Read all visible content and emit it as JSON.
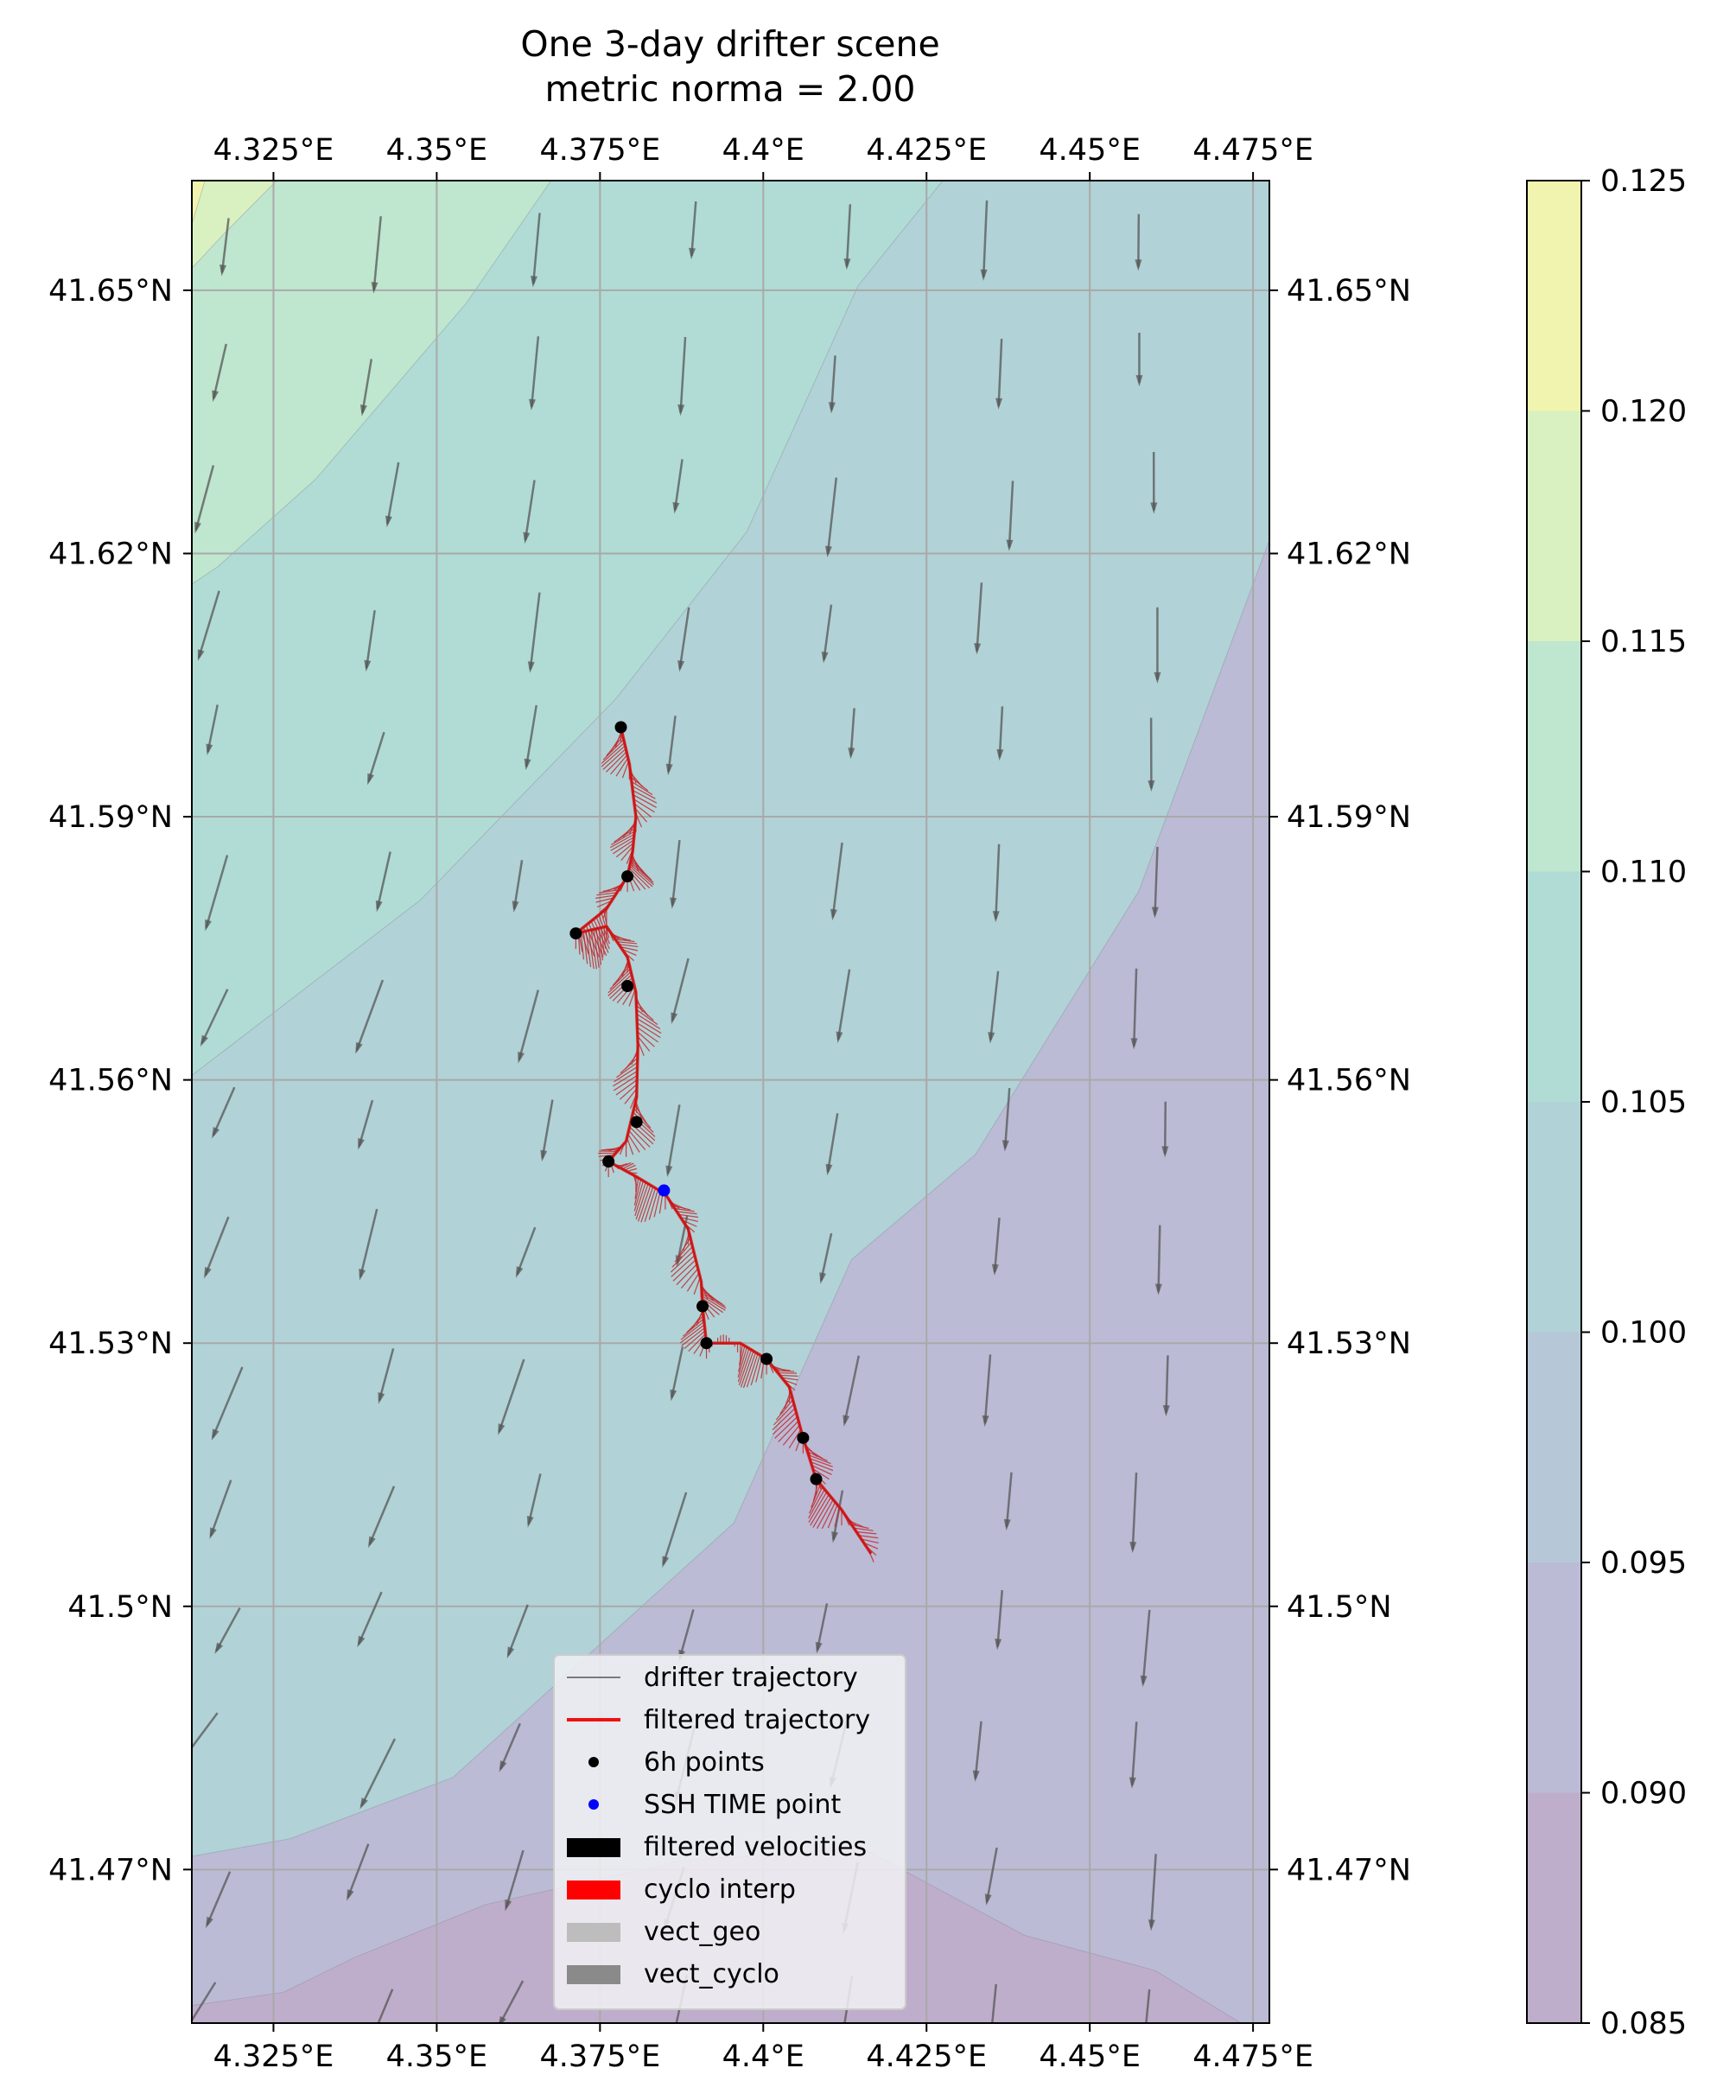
{
  "chart_data": {
    "type": "contour_map",
    "title": "One 3-day drifter scene",
    "subtitle": "metric norma = 2.00",
    "xlim": [
      4.3125,
      4.4775
    ],
    "ylim": [
      41.4525,
      41.6625
    ],
    "x_ticks": [
      4.325,
      4.35,
      4.375,
      4.4,
      4.425,
      4.45,
      4.475
    ],
    "x_tick_labels": [
      "4.325°E",
      "4.35°E",
      "4.375°E",
      "4.4°E",
      "4.425°E",
      "4.45°E",
      "4.475°E"
    ],
    "y_ticks": [
      41.47,
      41.5,
      41.53,
      41.56,
      41.59,
      41.62,
      41.65
    ],
    "y_tick_labels": [
      "41.47°N",
      "41.5°N",
      "41.53°N",
      "41.56°N",
      "41.59°N",
      "41.62°N",
      "41.65°N"
    ],
    "grid": true,
    "colorbar": {
      "levels": [
        0.085,
        0.09,
        0.095,
        0.1,
        0.105,
        0.11,
        0.115,
        0.12,
        0.125
      ],
      "tick_labels": [
        "0.085",
        "0.090",
        "0.095",
        "0.100",
        "0.105",
        "0.110",
        "0.115",
        "0.120",
        "0.125"
      ],
      "colors": [
        "#bfaecb",
        "#bbbbd5",
        "#b6c8d7",
        "#b1d2d6",
        "#b0dcd5",
        "#bfe6cf",
        "#d9f0c0",
        "#f1f4ae"
      ]
    },
    "contour_boundaries": [
      {
        "level": 0.09,
        "points": [
          [
            4.3125,
            41.4545
          ],
          [
            4.3265,
            41.456
          ],
          [
            4.3375,
            41.46
          ],
          [
            4.3575,
            41.466
          ],
          [
            4.3875,
            41.471
          ],
          [
            4.415,
            41.4725
          ],
          [
            4.44,
            41.4625
          ],
          [
            4.46,
            41.4585
          ],
          [
            4.4775,
            41.4505
          ]
        ],
        "fill_to": "top"
      },
      {
        "level": 0.095,
        "points": [
          [
            4.3125,
            41.491
          ],
          [
            4.3405,
            41.4985
          ],
          [
            4.3665,
            41.5305
          ],
          [
            4.3785,
            41.5545
          ],
          [
            4.3975,
            41.5775
          ],
          [
            4.4105,
            41.5975
          ],
          [
            4.4275,
            41.6285
          ],
          [
            4.4525,
            41.6405
          ],
          [
            4.4775,
            41.6595
          ]
        ],
        "fill_to": "top"
      },
      {
        "level": 0.1,
        "points": [
          [
            4.3125,
            41.4715
          ],
          [
            4.3275,
            41.4735
          ],
          [
            4.3525,
            41.4805
          ],
          [
            4.3955,
            41.5095
          ],
          [
            4.4135,
            41.5395
          ],
          [
            4.4325,
            41.5515
          ],
          [
            4.4575,
            41.5815
          ],
          [
            4.4775,
            41.6215
          ]
        ],
        "fill_to": "top"
      },
      {
        "level": 0.105,
        "points": [
          [
            4.3125,
            41.5605
          ],
          [
            4.3475,
            41.5805
          ],
          [
            4.3775,
            41.6035
          ],
          [
            4.3975,
            41.6225
          ],
          [
            4.4145,
            41.6505
          ],
          [
            4.4275,
            41.6625
          ]
        ],
        "fill_to": "top"
      },
      {
        "level": 0.11,
        "points": [
          [
            4.3125,
            41.6165
          ],
          [
            4.3165,
            41.6185
          ],
          [
            4.3315,
            41.6285
          ],
          [
            4.3545,
            41.6485
          ],
          [
            4.3675,
            41.6625
          ]
        ],
        "fill_to": "top"
      },
      {
        "level": 0.115,
        "points": [
          [
            4.3125,
            41.6525
          ],
          [
            4.3175,
            41.6565
          ],
          [
            4.3255,
            41.6625
          ]
        ],
        "fill_to": "top"
      },
      {
        "level": 0.12,
        "points": [
          [
            4.3125,
            41.6575
          ],
          [
            4.3145,
            41.6625
          ]
        ],
        "fill_to": "top"
      }
    ],
    "six_hour_points": [
      [
        4.3782,
        41.6002
      ],
      [
        4.3792,
        41.5832
      ],
      [
        4.3713,
        41.5767
      ],
      [
        4.3792,
        41.5707
      ],
      [
        4.3806,
        41.5552
      ],
      [
        4.3763,
        41.5507
      ],
      [
        4.3907,
        41.5342
      ],
      [
        4.3913,
        41.53
      ],
      [
        4.4005,
        41.5282
      ],
      [
        4.4061,
        41.5192
      ],
      [
        4.4081,
        41.5145
      ]
    ],
    "ssh_time_point": [
      4.3848,
      41.5474
    ],
    "filtered_trajectory": [
      [
        4.3782,
        41.6002
      ],
      [
        4.3795,
        41.596
      ],
      [
        4.3805,
        41.59
      ],
      [
        4.38,
        41.586
      ],
      [
        4.3792,
        41.5832
      ],
      [
        4.376,
        41.5795
      ],
      [
        4.3713,
        41.5767
      ],
      [
        4.376,
        41.5775
      ],
      [
        4.3792,
        41.574
      ],
      [
        4.3805,
        41.57
      ],
      [
        4.3808,
        41.564
      ],
      [
        4.3806,
        41.558
      ],
      [
        4.379,
        41.553
      ],
      [
        4.3763,
        41.5507
      ],
      [
        4.3805,
        41.549
      ],
      [
        4.385,
        41.547
      ],
      [
        4.3885,
        41.543
      ],
      [
        4.3905,
        41.537
      ],
      [
        4.3907,
        41.5342
      ],
      [
        4.3913,
        41.53
      ],
      [
        4.3965,
        41.53
      ],
      [
        4.4005,
        41.5282
      ],
      [
        4.404,
        41.525
      ],
      [
        4.4061,
        41.5192
      ],
      [
        4.4081,
        41.5145
      ],
      [
        4.412,
        41.511
      ],
      [
        4.4165,
        41.506
      ]
    ],
    "legend": [
      "drifter trajectory",
      "filtered trajectory",
      "6h points",
      "SSH TIME point",
      "filtered velocities",
      "cyclo interp",
      "vect_geo",
      "vect_cyclo"
    ]
  }
}
